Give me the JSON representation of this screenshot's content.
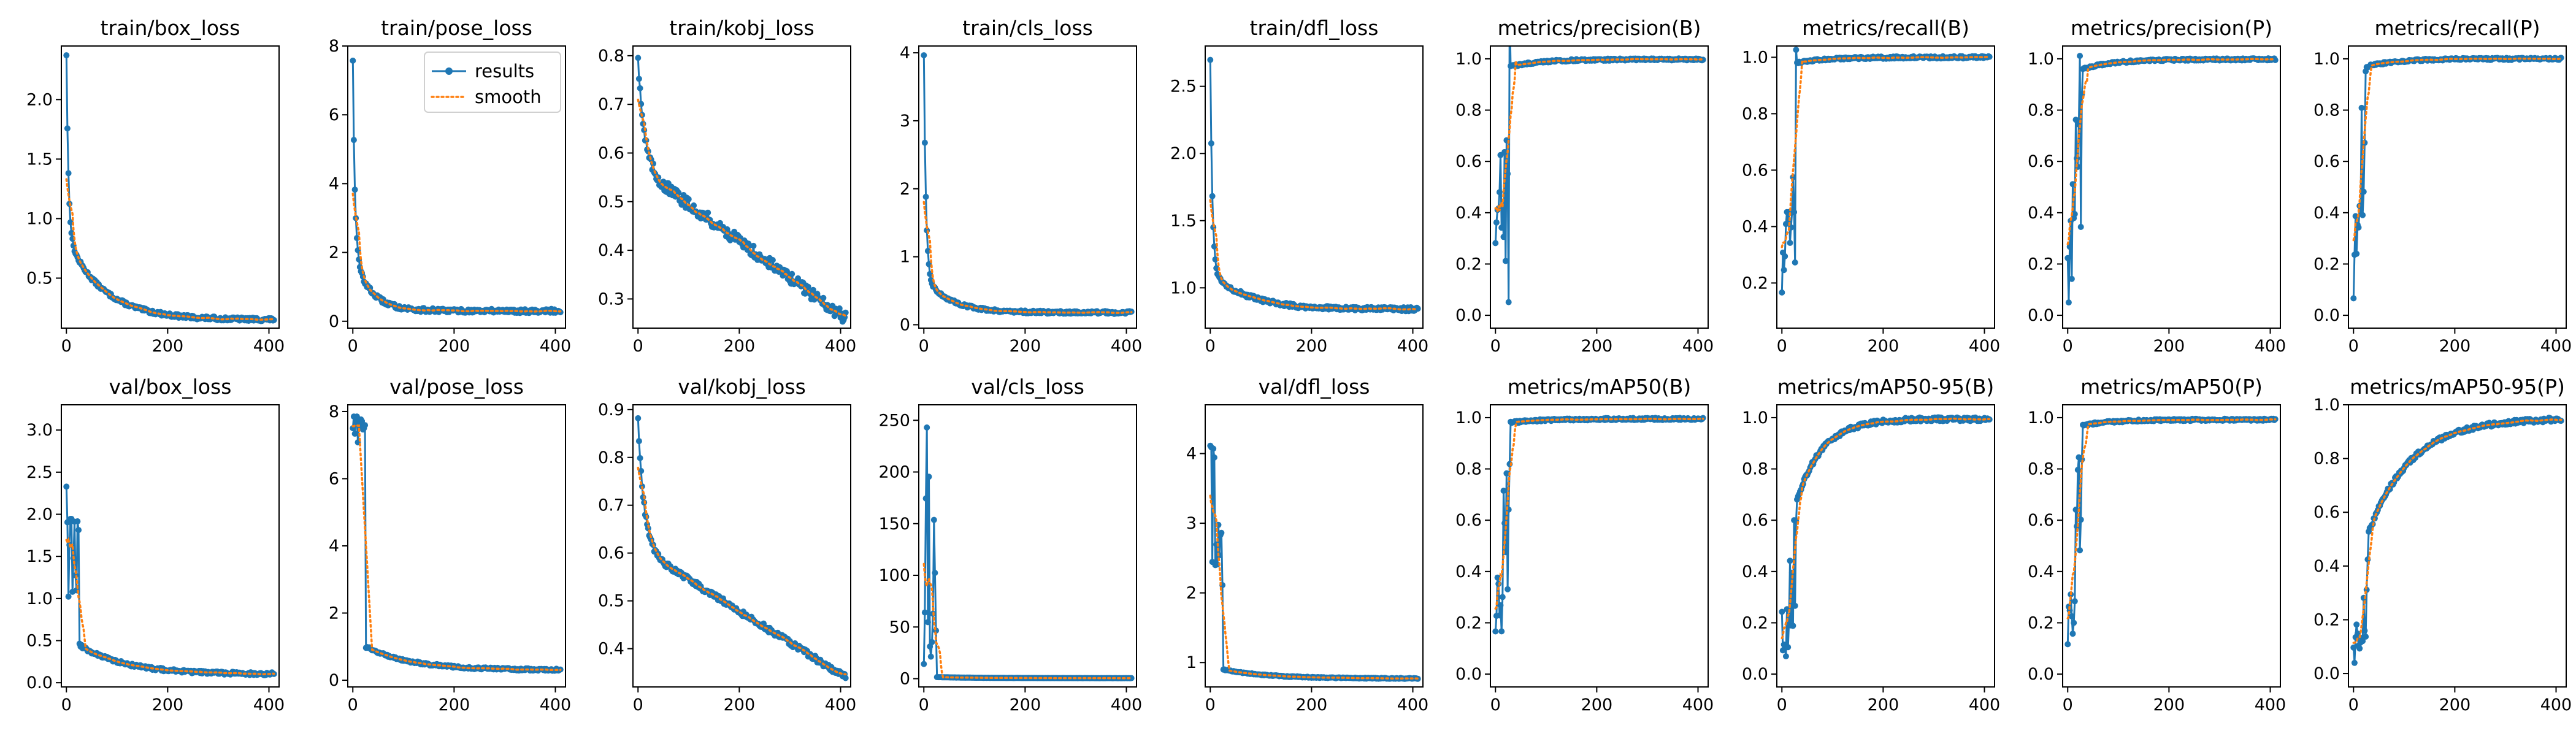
{
  "chart_data": [
    {
      "type": "line",
      "title": "train/box_loss",
      "xlim": [
        -10,
        420
      ],
      "ylim": [
        0.08,
        2.45
      ],
      "xticks": [
        0,
        200,
        400
      ],
      "yticks": [
        0.5,
        1.0,
        1.5,
        2.0
      ],
      "ytick_labels": [
        "0.5",
        "1.0",
        "1.5",
        "2.0"
      ],
      "series": [
        {
          "name": "results",
          "shape": "decay",
          "params": {
            "start": 2.38,
            "mid": 0.85,
            "end": 0.15,
            "k": 0.014,
            "noise": 0.015
          }
        }
      ]
    },
    {
      "type": "line",
      "title": "train/pose_loss",
      "xlim": [
        -10,
        420
      ],
      "ylim": [
        -0.2,
        8.0
      ],
      "xticks": [
        0,
        200,
        400
      ],
      "yticks": [
        0,
        2,
        4,
        6,
        8
      ],
      "ytick_labels": [
        "0",
        "2",
        "4",
        "6",
        "8"
      ],
      "legend": {
        "position": "top-right",
        "entries": [
          "results",
          "smooth"
        ]
      },
      "series": [
        {
          "name": "results",
          "shape": "decay",
          "params": {
            "start": 7.6,
            "mid": 2.0,
            "end": 0.3,
            "k": 0.03,
            "noise": 0.06
          }
        }
      ]
    },
    {
      "type": "line",
      "title": "train/kobj_loss",
      "xlim": [
        -10,
        420
      ],
      "ylim": [
        0.24,
        0.82
      ],
      "xticks": [
        0,
        200,
        400
      ],
      "yticks": [
        0.3,
        0.4,
        0.5,
        0.6,
        0.7,
        0.8
      ],
      "ytick_labels": [
        "0.3",
        "0.4",
        "0.5",
        "0.6",
        "0.7",
        "0.8"
      ],
      "series": [
        {
          "name": "results",
          "shape": "linear_drop",
          "params": {
            "start": 0.8,
            "mid": 0.57,
            "end": 0.26,
            "k": 0.04,
            "noise": 0.012
          }
        }
      ]
    },
    {
      "type": "line",
      "title": "train/cls_loss",
      "xlim": [
        -10,
        420
      ],
      "ylim": [
        -0.05,
        4.1
      ],
      "xticks": [
        0,
        200,
        400
      ],
      "yticks": [
        0,
        1,
        2,
        3,
        4
      ],
      "ytick_labels": [
        "0",
        "1",
        "2",
        "3",
        "4"
      ],
      "series": [
        {
          "name": "results",
          "shape": "decay",
          "params": {
            "start": 3.97,
            "mid": 0.7,
            "end": 0.18,
            "k": 0.02,
            "noise": 0.02
          }
        }
      ]
    },
    {
      "type": "line",
      "title": "train/dfl_loss",
      "xlim": [
        -10,
        420
      ],
      "ylim": [
        0.7,
        2.8
      ],
      "xticks": [
        0,
        200,
        400
      ],
      "yticks": [
        1.0,
        1.5,
        2.0,
        2.5
      ],
      "ytick_labels": [
        "1.0",
        "1.5",
        "2.0",
        "2.5"
      ],
      "series": [
        {
          "name": "results",
          "shape": "decay",
          "params": {
            "start": 2.7,
            "mid": 1.12,
            "end": 0.84,
            "k": 0.014,
            "noise": 0.015
          }
        }
      ]
    },
    {
      "type": "line",
      "title": "metrics/precision(B)",
      "xlim": [
        -10,
        420
      ],
      "ylim": [
        -0.05,
        1.05
      ],
      "xticks": [
        0,
        200,
        400
      ],
      "yticks": [
        0.0,
        0.2,
        0.4,
        0.6,
        0.8,
        1.0
      ],
      "ytick_labels": [
        "0.0",
        "0.2",
        "0.4",
        "0.6",
        "0.8",
        "1.0"
      ],
      "series": [
        {
          "name": "results",
          "shape": "rise",
          "params": {
            "start": 0.0,
            "plateau": 0.97,
            "end": 0.998,
            "rise_end": 30,
            "noise": 0.35
          }
        }
      ]
    },
    {
      "type": "line",
      "title": "metrics/recall(B)",
      "xlim": [
        -10,
        420
      ],
      "ylim": [
        0.04,
        1.04
      ],
      "xticks": [
        0,
        200,
        400
      ],
      "yticks": [
        0.2,
        0.4,
        0.6,
        0.8,
        1.0
      ],
      "ytick_labels": [
        "0.2",
        "0.4",
        "0.6",
        "0.8",
        "1.0"
      ],
      "series": [
        {
          "name": "results",
          "shape": "rise",
          "params": {
            "start": 0.1,
            "plateau": 0.98,
            "end": 1.0,
            "rise_end": 30,
            "noise": 0.3
          }
        }
      ]
    },
    {
      "type": "line",
      "title": "metrics/precision(P)",
      "xlim": [
        -10,
        420
      ],
      "ylim": [
        -0.05,
        1.05
      ],
      "xticks": [
        0,
        200,
        400
      ],
      "yticks": [
        0.0,
        0.2,
        0.4,
        0.6,
        0.8,
        1.0
      ],
      "ytick_labels": [
        "0.0",
        "0.2",
        "0.4",
        "0.6",
        "0.8",
        "1.0"
      ],
      "series": [
        {
          "name": "results",
          "shape": "rise",
          "params": {
            "start": 0.0,
            "plateau": 0.96,
            "end": 0.998,
            "rise_end": 30,
            "noise": 0.35
          }
        }
      ]
    },
    {
      "type": "line",
      "title": "metrics/recall(P)",
      "xlim": [
        -10,
        420
      ],
      "ylim": [
        -0.05,
        1.05
      ],
      "xticks": [
        0,
        200,
        400
      ],
      "yticks": [
        0.0,
        0.2,
        0.4,
        0.6,
        0.8,
        1.0
      ],
      "ytick_labels": [
        "0.0",
        "0.2",
        "0.4",
        "0.6",
        "0.8",
        "1.0"
      ],
      "series": [
        {
          "name": "results",
          "shape": "rise",
          "params": {
            "start": 0.05,
            "plateau": 0.97,
            "end": 1.0,
            "rise_end": 25,
            "noise": 0.3
          }
        }
      ]
    },
    {
      "type": "line",
      "title": "val/box_loss",
      "xlim": [
        -10,
        420
      ],
      "ylim": [
        -0.05,
        3.3
      ],
      "xticks": [
        0,
        200,
        400
      ],
      "yticks": [
        0.0,
        0.5,
        1.0,
        1.5,
        2.0,
        2.5,
        3.0
      ],
      "ytick_labels": [
        "0.0",
        "0.5",
        "1.0",
        "1.5",
        "2.0",
        "2.5",
        "3.0"
      ],
      "series": [
        {
          "name": "results",
          "shape": "spike_decay",
          "params": {
            "start": 0.8,
            "peak": 3.18,
            "post": 0.45,
            "end": 0.1,
            "rise_end": 25,
            "noise": 0.6
          }
        }
      ]
    },
    {
      "type": "line",
      "title": "val/pose_loss",
      "xlim": [
        -10,
        420
      ],
      "ylim": [
        -0.2,
        8.2
      ],
      "xticks": [
        0,
        200,
        400
      ],
      "yticks": [
        0,
        2,
        4,
        6,
        8
      ],
      "ytick_labels": [
        "0",
        "2",
        "4",
        "6",
        "8"
      ],
      "series": [
        {
          "name": "results",
          "shape": "spike_decay",
          "params": {
            "start": 7.9,
            "peak": 7.0,
            "post": 1.0,
            "end": 0.3,
            "rise_end": 25,
            "noise": 1.2
          }
        }
      ]
    },
    {
      "type": "line",
      "title": "val/kobj_loss",
      "xlim": [
        -10,
        420
      ],
      "ylim": [
        0.32,
        0.91
      ],
      "xticks": [
        0,
        200,
        400
      ],
      "yticks": [
        0.4,
        0.5,
        0.6,
        0.7,
        0.8,
        0.9
      ],
      "ytick_labels": [
        "0.4",
        "0.5",
        "0.6",
        "0.7",
        "0.8",
        "0.9"
      ],
      "series": [
        {
          "name": "results",
          "shape": "linear_drop",
          "params": {
            "start": 0.88,
            "mid": 0.61,
            "end": 0.34,
            "k": 0.2,
            "noise": 0.006
          }
        }
      ]
    },
    {
      "type": "line",
      "title": "val/cls_loss",
      "xlim": [
        -10,
        420
      ],
      "ylim": [
        -8,
        265
      ],
      "xticks": [
        0,
        200,
        400
      ],
      "yticks": [
        0,
        50,
        100,
        150,
        200,
        250
      ],
      "ytick_labels": [
        "0",
        "50",
        "100",
        "150",
        "200",
        "250"
      ],
      "series": [
        {
          "name": "results",
          "shape": "spike_decay",
          "params": {
            "start": 5,
            "peak": 255,
            "post": 1.5,
            "end": 0.5,
            "rise_end": 25,
            "noise": 100
          }
        }
      ]
    },
    {
      "type": "line",
      "title": "val/dfl_loss",
      "xlim": [
        -10,
        420
      ],
      "ylim": [
        0.65,
        4.7
      ],
      "xticks": [
        0,
        200,
        400
      ],
      "yticks": [
        1,
        2,
        3,
        4
      ],
      "ytick_labels": [
        "1",
        "2",
        "3",
        "4"
      ],
      "series": [
        {
          "name": "results",
          "shape": "spike_decay",
          "params": {
            "start": 1.9,
            "peak": 4.55,
            "post": 0.9,
            "end": 0.77,
            "rise_end": 25,
            "noise": 1.0
          }
        }
      ]
    },
    {
      "type": "line",
      "title": "metrics/mAP50(B)",
      "xlim": [
        -10,
        420
      ],
      "ylim": [
        -0.05,
        1.05
      ],
      "xticks": [
        0,
        200,
        400
      ],
      "yticks": [
        0.0,
        0.2,
        0.4,
        0.6,
        0.8,
        1.0
      ],
      "ytick_labels": [
        "0.0",
        "0.2",
        "0.4",
        "0.6",
        "0.8",
        "1.0"
      ],
      "series": [
        {
          "name": "results",
          "shape": "rise",
          "params": {
            "start": 0.0,
            "plateau": 0.98,
            "end": 0.995,
            "rise_end": 30,
            "noise": 0.3
          }
        }
      ]
    },
    {
      "type": "line",
      "title": "metrics/mAP50-95(B)",
      "xlim": [
        -10,
        420
      ],
      "ylim": [
        -0.05,
        1.05
      ],
      "xticks": [
        0,
        200,
        400
      ],
      "yticks": [
        0.0,
        0.2,
        0.4,
        0.6,
        0.8,
        1.0
      ],
      "ytick_labels": [
        "0.0",
        "0.2",
        "0.4",
        "0.6",
        "0.8",
        "1.0"
      ],
      "series": [
        {
          "name": "results",
          "shape": "rise_slow",
          "params": {
            "start": 0.0,
            "plateau": 0.9,
            "end": 0.995,
            "rise_end": 30,
            "k": 0.02,
            "noise": 0.25
          }
        }
      ]
    },
    {
      "type": "line",
      "title": "metrics/mAP50(P)",
      "xlim": [
        -10,
        420
      ],
      "ylim": [
        -0.05,
        1.05
      ],
      "xticks": [
        0,
        200,
        400
      ],
      "yticks": [
        0.0,
        0.2,
        0.4,
        0.6,
        0.8,
        1.0
      ],
      "ytick_labels": [
        "0.0",
        "0.2",
        "0.4",
        "0.6",
        "0.8",
        "1.0"
      ],
      "series": [
        {
          "name": "results",
          "shape": "rise",
          "params": {
            "start": 0.0,
            "plateau": 0.97,
            "end": 0.992,
            "rise_end": 30,
            "noise": 0.3
          }
        }
      ]
    },
    {
      "type": "line",
      "title": "metrics/mAP50-95(P)",
      "xlim": [
        -10,
        420
      ],
      "ylim": [
        -0.05,
        1.0
      ],
      "xticks": [
        0,
        200,
        400
      ],
      "yticks": [
        0.0,
        0.2,
        0.4,
        0.6,
        0.8,
        1.0
      ],
      "ytick_labels": [
        "0.0",
        "0.2",
        "0.4",
        "0.6",
        "0.8",
        "1.0"
      ],
      "series": [
        {
          "name": "results",
          "shape": "rise_slow",
          "params": {
            "start": 0.0,
            "plateau": 0.7,
            "end": 0.95,
            "rise_end": 30,
            "k": 0.012,
            "noise": 0.12
          }
        }
      ]
    }
  ],
  "legend": {
    "results": "results",
    "smooth": "smooth"
  },
  "colors": {
    "results": "#1f77b4",
    "smooth": "#ff7f0e",
    "axes": "#000000",
    "background": "#ffffff"
  }
}
